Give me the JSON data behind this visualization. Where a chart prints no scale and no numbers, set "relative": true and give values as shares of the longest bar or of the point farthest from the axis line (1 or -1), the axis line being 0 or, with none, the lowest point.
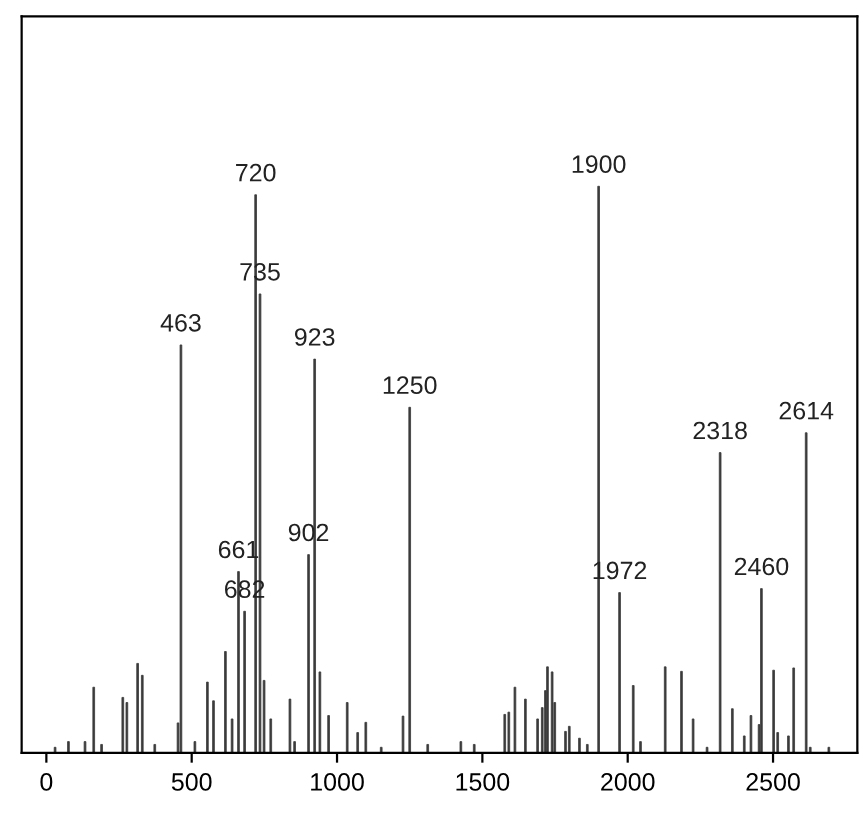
{
  "chart_data": {
    "type": "bar",
    "relative": true,
    "color": "#3c3c3c",
    "tick_labels": "x",
    "x": [
      30,
      76,
      133,
      163,
      190,
      263,
      277,
      314,
      330,
      373,
      453,
      463,
      511,
      554,
      575,
      616,
      639,
      661,
      682,
      720,
      735,
      749,
      772,
      838,
      854,
      902,
      923,
      941,
      971,
      1035,
      1071,
      1099,
      1152,
      1227,
      1250,
      1312,
      1426,
      1472,
      1577,
      1591,
      1612,
      1648,
      1690,
      1706,
      1717,
      1724,
      1740,
      1749,
      1786,
      1799,
      1834,
      1861,
      1900,
      1972,
      2019,
      2044,
      2129,
      2185,
      2225,
      2273,
      2318,
      2360,
      2401,
      2424,
      2452,
      2460,
      2502,
      2516,
      2553,
      2571,
      2614,
      2628,
      2692
    ],
    "values": [
      0.01,
      0.02,
      0.02,
      0.116,
      0.015,
      0.098,
      0.089,
      0.158,
      0.137,
      0.015,
      0.053,
      0.72,
      0.02,
      0.125,
      0.092,
      0.179,
      0.06,
      0.32,
      0.25,
      0.985,
      0.81,
      0.128,
      0.06,
      0.095,
      0.02,
      0.35,
      0.695,
      0.143,
      0.066,
      0.089,
      0.036,
      0.054,
      0.01,
      0.065,
      0.61,
      0.015,
      0.02,
      0.015,
      0.068,
      0.072,
      0.116,
      0.095,
      0.06,
      0.08,
      0.11,
      0.152,
      0.143,
      0.089,
      0.038,
      0.047,
      0.026,
      0.015,
      1,
      0.283,
      0.119,
      0.02,
      0.152,
      0.144,
      0.06,
      0.01,
      0.53,
      0.078,
      0.03,
      0.066,
      0.05,
      0.29,
      0.146,
      0.036,
      0.03,
      0.15,
      0.565,
      0.01,
      0.01
    ],
    "xlim": [
      -85,
      2790
    ],
    "xticks": [
      0,
      500,
      1000,
      1500,
      2000,
      2500
    ],
    "grid": false,
    "annotations": [
      {
        "text": "463",
        "x": 463,
        "y": 0.72
      },
      {
        "text": "661",
        "x": 661,
        "y": 0.32
      },
      {
        "text": "682",
        "x": 682,
        "y": 0.25
      },
      {
        "text": "720",
        "x": 720,
        "y": 0.985
      },
      {
        "text": "735",
        "x": 735,
        "y": 0.81
      },
      {
        "text": "902",
        "x": 902,
        "y": 0.35
      },
      {
        "text": "923",
        "x": 923,
        "y": 0.695
      },
      {
        "text": "1250",
        "x": 1250,
        "y": 0.61
      },
      {
        "text": "1900",
        "x": 1900,
        "y": 1
      },
      {
        "text": "1972",
        "x": 1972,
        "y": 0.283
      },
      {
        "text": "2318",
        "x": 2318,
        "y": 0.53
      },
      {
        "text": "2460",
        "x": 2460,
        "y": 0.29
      },
      {
        "text": "2614",
        "x": 2614,
        "y": 0.565
      }
    ]
  }
}
